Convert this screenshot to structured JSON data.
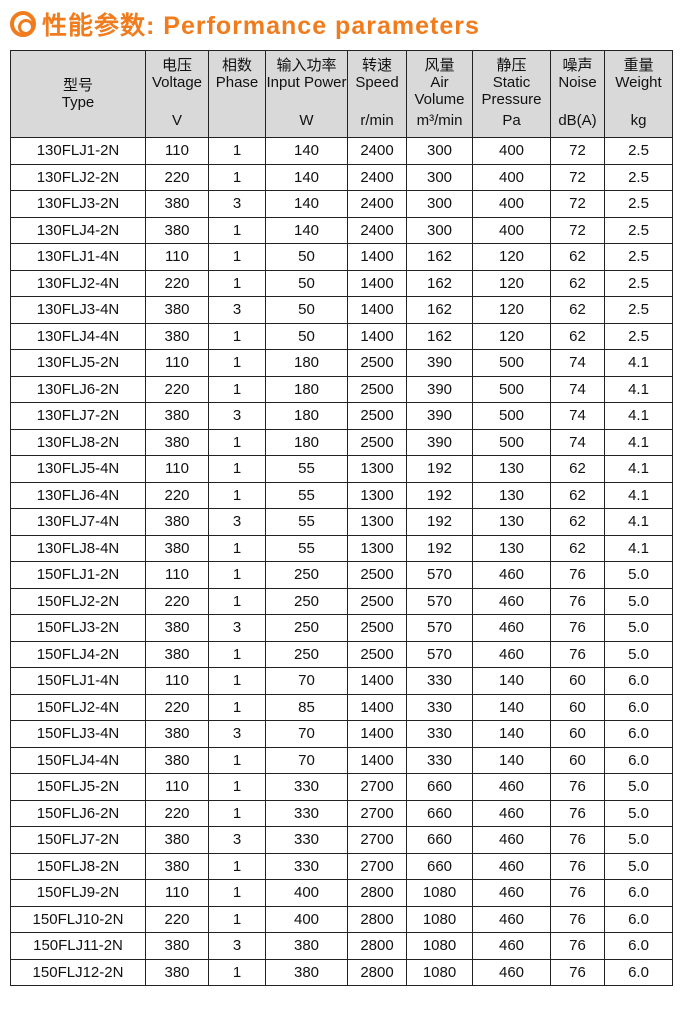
{
  "title": "性能参数: Performance parameters",
  "accent": "#f07c1e",
  "headers": [
    {
      "cn": "",
      "en": "型号",
      "unit": "Type"
    },
    {
      "cn": "电压",
      "en": "Voltage",
      "unit": "V"
    },
    {
      "cn": "相数",
      "en": "Phase",
      "unit": ""
    },
    {
      "cn": "输入功率",
      "en": "Input Power",
      "unit": "W"
    },
    {
      "cn": "转速",
      "en": "Speed",
      "unit": "r/min"
    },
    {
      "cn": "风量",
      "en": "Air Volume",
      "unit": "m³/min"
    },
    {
      "cn": "静压",
      "en": "Static Pressure",
      "unit": "Pa"
    },
    {
      "cn": "噪声",
      "en": "Noise",
      "unit": "dB(A)"
    },
    {
      "cn": "重量",
      "en": "Weight",
      "unit": "kg"
    }
  ],
  "rows": [
    [
      "130FLJ1-2N",
      "110",
      "1",
      "140",
      "2400",
      "300",
      "400",
      "72",
      "2.5"
    ],
    [
      "130FLJ2-2N",
      "220",
      "1",
      "140",
      "2400",
      "300",
      "400",
      "72",
      "2.5"
    ],
    [
      "130FLJ3-2N",
      "380",
      "3",
      "140",
      "2400",
      "300",
      "400",
      "72",
      "2.5"
    ],
    [
      "130FLJ4-2N",
      "380",
      "1",
      "140",
      "2400",
      "300",
      "400",
      "72",
      "2.5"
    ],
    [
      "130FLJ1-4N",
      "110",
      "1",
      "50",
      "1400",
      "162",
      "120",
      "62",
      "2.5"
    ],
    [
      "130FLJ2-4N",
      "220",
      "1",
      "50",
      "1400",
      "162",
      "120",
      "62",
      "2.5"
    ],
    [
      "130FLJ3-4N",
      "380",
      "3",
      "50",
      "1400",
      "162",
      "120",
      "62",
      "2.5"
    ],
    [
      "130FLJ4-4N",
      "380",
      "1",
      "50",
      "1400",
      "162",
      "120",
      "62",
      "2.5"
    ],
    [
      "130FLJ5-2N",
      "110",
      "1",
      "180",
      "2500",
      "390",
      "500",
      "74",
      "4.1"
    ],
    [
      "130FLJ6-2N",
      "220",
      "1",
      "180",
      "2500",
      "390",
      "500",
      "74",
      "4.1"
    ],
    [
      "130FLJ7-2N",
      "380",
      "3",
      "180",
      "2500",
      "390",
      "500",
      "74",
      "4.1"
    ],
    [
      "130FLJ8-2N",
      "380",
      "1",
      "180",
      "2500",
      "390",
      "500",
      "74",
      "4.1"
    ],
    [
      "130FLJ5-4N",
      "110",
      "1",
      "55",
      "1300",
      "192",
      "130",
      "62",
      "4.1"
    ],
    [
      "130FLJ6-4N",
      "220",
      "1",
      "55",
      "1300",
      "192",
      "130",
      "62",
      "4.1"
    ],
    [
      "130FLJ7-4N",
      "380",
      "3",
      "55",
      "1300",
      "192",
      "130",
      "62",
      "4.1"
    ],
    [
      "130FLJ8-4N",
      "380",
      "1",
      "55",
      "1300",
      "192",
      "130",
      "62",
      "4.1"
    ],
    [
      "150FLJ1-2N",
      "110",
      "1",
      "250",
      "2500",
      "570",
      "460",
      "76",
      "5.0"
    ],
    [
      "150FLJ2-2N",
      "220",
      "1",
      "250",
      "2500",
      "570",
      "460",
      "76",
      "5.0"
    ],
    [
      "150FLJ3-2N",
      "380",
      "3",
      "250",
      "2500",
      "570",
      "460",
      "76",
      "5.0"
    ],
    [
      "150FLJ4-2N",
      "380",
      "1",
      "250",
      "2500",
      "570",
      "460",
      "76",
      "5.0"
    ],
    [
      "150FLJ1-4N",
      "110",
      "1",
      "70",
      "1400",
      "330",
      "140",
      "60",
      "6.0"
    ],
    [
      "150FLJ2-4N",
      "220",
      "1",
      "85",
      "1400",
      "330",
      "140",
      "60",
      "6.0"
    ],
    [
      "150FLJ3-4N",
      "380",
      "3",
      "70",
      "1400",
      "330",
      "140",
      "60",
      "6.0"
    ],
    [
      "150FLJ4-4N",
      "380",
      "1",
      "70",
      "1400",
      "330",
      "140",
      "60",
      "6.0"
    ],
    [
      "150FLJ5-2N",
      "110",
      "1",
      "330",
      "2700",
      "660",
      "460",
      "76",
      "5.0"
    ],
    [
      "150FLJ6-2N",
      "220",
      "1",
      "330",
      "2700",
      "660",
      "460",
      "76",
      "5.0"
    ],
    [
      "150FLJ7-2N",
      "380",
      "3",
      "330",
      "2700",
      "660",
      "460",
      "76",
      "5.0"
    ],
    [
      "150FLJ8-2N",
      "380",
      "1",
      "330",
      "2700",
      "660",
      "460",
      "76",
      "5.0"
    ],
    [
      "150FLJ9-2N",
      "110",
      "1",
      "400",
      "2800",
      "1080",
      "460",
      "76",
      "6.0"
    ],
    [
      "150FLJ10-2N",
      "220",
      "1",
      "400",
      "2800",
      "1080",
      "460",
      "76",
      "6.0"
    ],
    [
      "150FLJ11-2N",
      "380",
      "3",
      "380",
      "2800",
      "1080",
      "460",
      "76",
      "6.0"
    ],
    [
      "150FLJ12-2N",
      "380",
      "1",
      "380",
      "2800",
      "1080",
      "460",
      "76",
      "6.0"
    ]
  ]
}
